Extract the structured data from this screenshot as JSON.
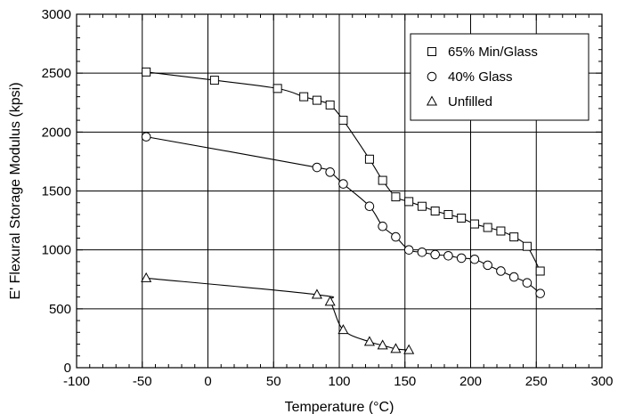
{
  "chart_data": {
    "type": "line",
    "xlabel": "Temperature (°C)",
    "ylabel": "E' Flexural Storage Modulus (kpsi)",
    "xlim": [
      -100,
      300
    ],
    "ylim": [
      0,
      3000
    ],
    "xticks": [
      "-100",
      "-50",
      "0",
      "50",
      "100",
      "150",
      "200",
      "250",
      "300"
    ],
    "yticks": [
      "0",
      "500",
      "1000",
      "1500",
      "2000",
      "2500",
      "3000"
    ],
    "grid": true,
    "legend_position": "top-right",
    "series": [
      {
        "name": "65% Min/Glass",
        "marker": "square",
        "x": [
          -47,
          5,
          53,
          73,
          83,
          93,
          103,
          123,
          133,
          143,
          153,
          163,
          173,
          183,
          193,
          203,
          213,
          223,
          233,
          243,
          253
        ],
        "y": [
          2510,
          2440,
          2370,
          2300,
          2270,
          2230,
          2100,
          1770,
          1590,
          1450,
          1410,
          1370,
          1330,
          1300,
          1270,
          1220,
          1190,
          1160,
          1110,
          1030,
          820
        ]
      },
      {
        "name": "40% Glass",
        "marker": "circle",
        "x": [
          -47,
          83,
          93,
          103,
          123,
          133,
          143,
          153,
          163,
          173,
          183,
          193,
          203,
          213,
          223,
          233,
          243,
          253
        ],
        "y": [
          1960,
          1700,
          1660,
          1560,
          1370,
          1200,
          1110,
          1000,
          980,
          960,
          950,
          930,
          920,
          870,
          820,
          770,
          720,
          630
        ]
      },
      {
        "name": "Unfilled",
        "marker": "triangle",
        "x": [
          -47,
          83,
          93,
          103,
          123,
          133,
          143,
          153
        ],
        "y": [
          760,
          620,
          560,
          320,
          220,
          190,
          160,
          150
        ]
      }
    ]
  }
}
